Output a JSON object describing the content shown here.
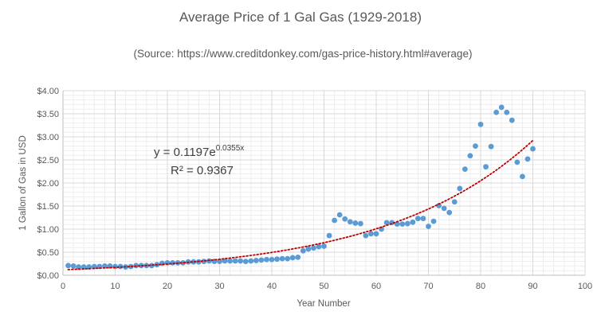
{
  "chart_data": {
    "type": "scatter",
    "title": "Average Price of 1 Gal Gas (1929-2018)",
    "subtitle": "(Source:  https://www.creditdonkey.com/gas-price-history.html#average)",
    "xlabel": "Year Number",
    "ylabel": "1 Gallon of Gas in USD",
    "xlim": [
      0,
      100
    ],
    "ylim": [
      0,
      4
    ],
    "x_ticks": [
      0,
      10,
      20,
      30,
      40,
      50,
      60,
      70,
      80,
      90,
      100
    ],
    "x_tick_labels": [
      "0",
      "10",
      "20",
      "30",
      "40",
      "50",
      "60",
      "70",
      "80",
      "90",
      "100"
    ],
    "y_ticks": [
      0,
      0.5,
      1,
      1.5,
      2,
      2.5,
      3,
      3.5,
      4
    ],
    "y_tick_labels": [
      "$0.00",
      "$0.50",
      "$1.00",
      "$1.50",
      "$2.00",
      "$2.50",
      "$3.00",
      "$3.50",
      "$4.00"
    ],
    "grid": {
      "x_minor": true,
      "y_minor": true
    },
    "marker_color": "#5B9BD5",
    "trendline": {
      "type": "exponential",
      "color": "#C00000",
      "style": "dotted",
      "a": 0.1197,
      "b": 0.0355,
      "equation_main": "y = 0.1197e",
      "equation_exp": "0.0355x",
      "r2_label": "R² = 0.9367"
    },
    "points": [
      [
        1,
        0.21
      ],
      [
        2,
        0.2
      ],
      [
        3,
        0.18
      ],
      [
        4,
        0.18
      ],
      [
        5,
        0.18
      ],
      [
        6,
        0.19
      ],
      [
        7,
        0.19
      ],
      [
        8,
        0.2
      ],
      [
        9,
        0.2
      ],
      [
        10,
        0.19
      ],
      [
        11,
        0.19
      ],
      [
        12,
        0.18
      ],
      [
        13,
        0.19
      ],
      [
        14,
        0.21
      ],
      [
        15,
        0.21
      ],
      [
        16,
        0.21
      ],
      [
        17,
        0.21
      ],
      [
        18,
        0.23
      ],
      [
        19,
        0.26
      ],
      [
        20,
        0.27
      ],
      [
        21,
        0.27
      ],
      [
        22,
        0.27
      ],
      [
        23,
        0.27
      ],
      [
        24,
        0.29
      ],
      [
        25,
        0.29
      ],
      [
        26,
        0.29
      ],
      [
        27,
        0.3
      ],
      [
        28,
        0.31
      ],
      [
        29,
        0.3
      ],
      [
        30,
        0.3
      ],
      [
        31,
        0.31
      ],
      [
        32,
        0.31
      ],
      [
        33,
        0.31
      ],
      [
        34,
        0.31
      ],
      [
        35,
        0.3
      ],
      [
        36,
        0.31
      ],
      [
        37,
        0.32
      ],
      [
        38,
        0.33
      ],
      [
        39,
        0.34
      ],
      [
        40,
        0.34
      ],
      [
        41,
        0.35
      ],
      [
        42,
        0.36
      ],
      [
        43,
        0.36
      ],
      [
        44,
        0.38
      ],
      [
        45,
        0.39
      ],
      [
        46,
        0.53
      ],
      [
        47,
        0.57
      ],
      [
        48,
        0.59
      ],
      [
        49,
        0.62
      ],
      [
        50,
        0.63
      ],
      [
        51,
        0.86
      ],
      [
        52,
        1.19
      ],
      [
        53,
        1.31
      ],
      [
        54,
        1.22
      ],
      [
        55,
        1.16
      ],
      [
        56,
        1.13
      ],
      [
        57,
        1.12
      ],
      [
        58,
        0.86
      ],
      [
        59,
        0.9
      ],
      [
        60,
        0.9
      ],
      [
        61,
        1.0
      ],
      [
        62,
        1.14
      ],
      [
        63,
        1.14
      ],
      [
        64,
        1.11
      ],
      [
        65,
        1.11
      ],
      [
        66,
        1.12
      ],
      [
        67,
        1.15
      ],
      [
        68,
        1.23
      ],
      [
        69,
        1.23
      ],
      [
        70,
        1.06
      ],
      [
        71,
        1.17
      ],
      [
        72,
        1.51
      ],
      [
        73,
        1.45
      ],
      [
        74,
        1.36
      ],
      [
        75,
        1.59
      ],
      [
        76,
        1.88
      ],
      [
        77,
        2.3
      ],
      [
        78,
        2.59
      ],
      [
        79,
        2.8
      ],
      [
        80,
        3.27
      ],
      [
        81,
        2.35
      ],
      [
        82,
        2.79
      ],
      [
        83,
        3.53
      ],
      [
        84,
        3.64
      ],
      [
        85,
        3.53
      ],
      [
        86,
        3.36
      ],
      [
        87,
        2.45
      ],
      [
        88,
        2.14
      ],
      [
        89,
        2.52
      ],
      [
        90,
        2.74
      ]
    ]
  }
}
